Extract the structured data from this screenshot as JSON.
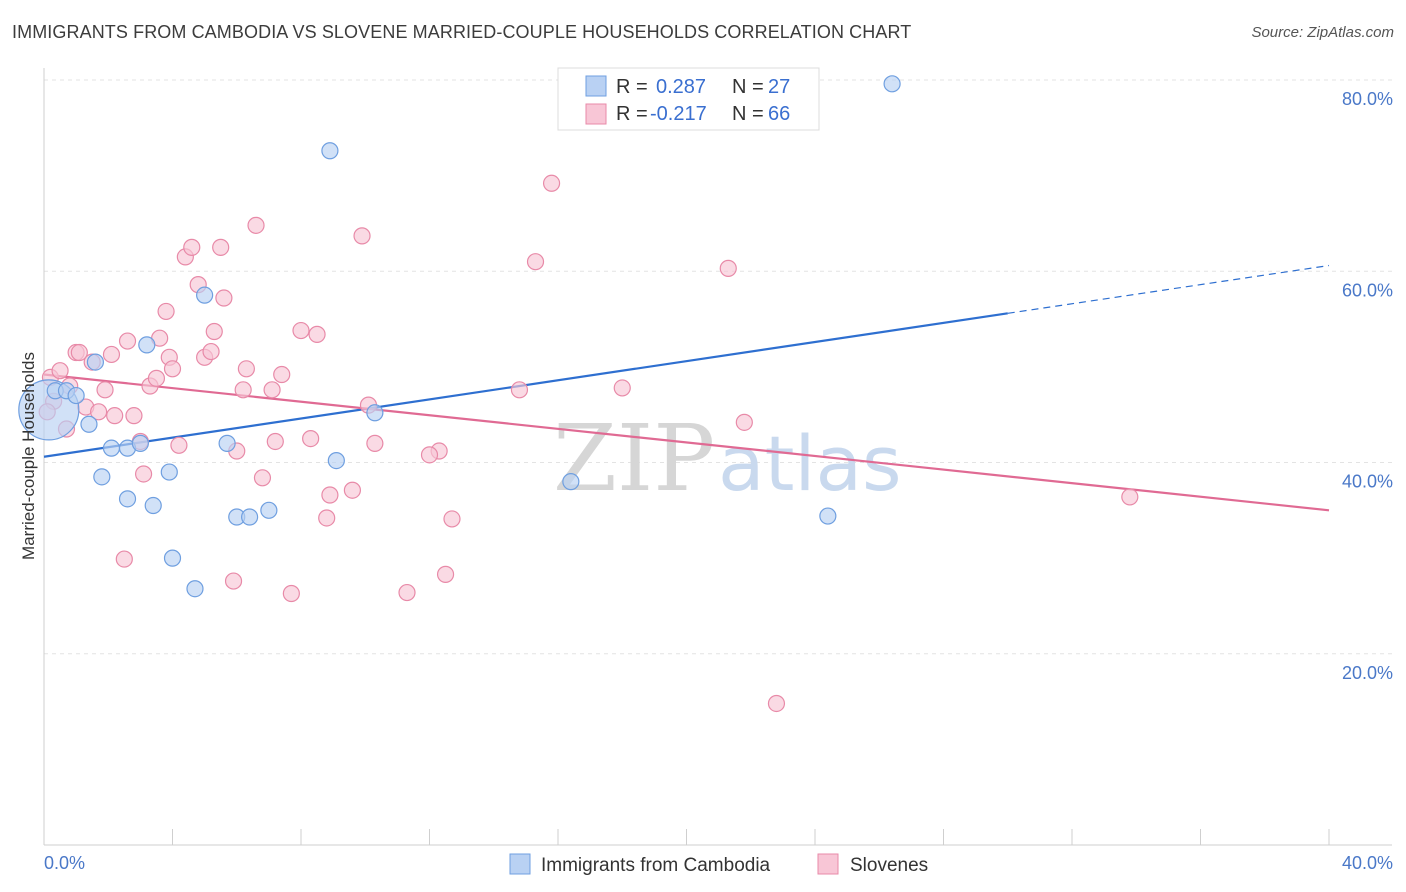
{
  "title": "IMMIGRANTS FROM CAMBODIA VS SLOVENE MARRIED-COUPLE HOUSEHOLDS CORRELATION CHART",
  "source": "Source: ZipAtlas.com",
  "watermark": {
    "zip": "ZIP",
    "atlas": "atlas"
  },
  "chart_data": {
    "type": "scatter",
    "title": "IMMIGRANTS FROM CAMBODIA VS SLOVENE MARRIED-COUPLE HOUSEHOLDS CORRELATION CHART",
    "xlabel": "",
    "ylabel": "Married-couple Households",
    "xlim": [
      0,
      40
    ],
    "ylim": [
      0,
      80
    ],
    "x_tick_labels": [
      "0.0%",
      "40.0%"
    ],
    "y_ticks": [
      20,
      40,
      60,
      80
    ],
    "y_tick_labels": [
      "20.0%",
      "40.0%",
      "60.0%",
      "80.0%"
    ],
    "legend_items": [
      "Immigrants from Cambodia",
      "Slovenes"
    ],
    "stats": [
      {
        "r_label": "R =",
        "r_value": "0.287",
        "n_label": "N =",
        "n_value": "27"
      },
      {
        "r_label": "R =",
        "r_value": "-0.217",
        "n_label": "N =",
        "n_value": "66"
      }
    ],
    "series": [
      {
        "name": "Immigrants from Cambodia",
        "color": "#6f9fe0",
        "fill": "#b9d1f3",
        "trend": {
          "x0": 0,
          "y0": 40.6,
          "x1": 30,
          "y1": 55.6,
          "dash_to_x": 40,
          "dash_to_y": 60.6,
          "color": "#2e6fd0"
        },
        "points": [
          [
            0.15,
            45.5,
            30
          ],
          [
            0.35,
            47.5,
            8
          ],
          [
            0.7,
            47.5,
            8
          ],
          [
            1.0,
            47.0,
            8
          ],
          [
            1.4,
            44.0,
            8
          ],
          [
            1.6,
            50.5,
            8
          ],
          [
            1.8,
            38.5,
            8
          ],
          [
            2.1,
            41.5,
            8
          ],
          [
            2.6,
            41.5,
            8
          ],
          [
            2.6,
            36.2,
            8
          ],
          [
            3.0,
            42.0,
            8
          ],
          [
            3.2,
            52.3,
            8
          ],
          [
            3.4,
            35.5,
            8
          ],
          [
            3.9,
            39.0,
            8
          ],
          [
            4.0,
            30.0,
            8
          ],
          [
            4.7,
            26.8,
            8
          ],
          [
            5.0,
            57.5,
            8
          ],
          [
            5.7,
            42.0,
            8
          ],
          [
            6.0,
            34.3,
            8
          ],
          [
            6.4,
            34.3,
            8
          ],
          [
            7.0,
            35.0,
            8
          ],
          [
            8.9,
            72.6,
            8
          ],
          [
            9.1,
            40.2,
            8
          ],
          [
            10.3,
            45.2,
            8
          ],
          [
            16.4,
            38.0,
            8
          ],
          [
            24.4,
            34.4,
            8
          ],
          [
            26.4,
            79.6,
            8
          ]
        ]
      },
      {
        "name": "Slovenes",
        "color": "#e88aa8",
        "fill": "#f8c6d6",
        "trend": {
          "x0": 0,
          "y0": 49.2,
          "x1": 40,
          "y1": 35.0,
          "color": "#e06a93"
        },
        "points": [
          [
            0.2,
            48.9,
            8
          ],
          [
            0.3,
            46.4,
            8
          ],
          [
            0.5,
            49.6,
            8
          ],
          [
            0.7,
            43.5,
            8
          ],
          [
            0.8,
            48.0,
            8
          ],
          [
            1.0,
            51.5,
            8
          ],
          [
            1.1,
            51.5,
            8
          ],
          [
            1.3,
            45.8,
            8
          ],
          [
            1.5,
            50.5,
            8
          ],
          [
            1.7,
            45.3,
            8
          ],
          [
            1.9,
            47.6,
            8
          ],
          [
            2.1,
            51.3,
            8
          ],
          [
            2.2,
            44.9,
            8
          ],
          [
            2.5,
            29.9,
            8
          ],
          [
            2.6,
            52.7,
            8
          ],
          [
            2.8,
            44.9,
            8
          ],
          [
            3.0,
            42.2,
            8
          ],
          [
            3.1,
            38.8,
            8
          ],
          [
            3.3,
            48.0,
            8
          ],
          [
            3.5,
            48.8,
            8
          ],
          [
            3.6,
            53.0,
            8
          ],
          [
            3.8,
            55.8,
            8
          ],
          [
            3.9,
            51.0,
            8
          ],
          [
            4.0,
            49.8,
            8
          ],
          [
            4.2,
            41.8,
            8
          ],
          [
            4.4,
            61.5,
            8
          ],
          [
            4.6,
            62.5,
            8
          ],
          [
            4.8,
            58.6,
            8
          ],
          [
            5.0,
            51.0,
            8
          ],
          [
            5.2,
            51.6,
            8
          ],
          [
            5.3,
            53.7,
            8
          ],
          [
            5.5,
            62.5,
            8
          ],
          [
            5.6,
            57.2,
            8
          ],
          [
            5.9,
            27.6,
            8
          ],
          [
            6.0,
            41.2,
            8
          ],
          [
            6.2,
            47.6,
            8
          ],
          [
            6.3,
            49.8,
            8
          ],
          [
            6.6,
            64.8,
            8
          ],
          [
            6.8,
            38.4,
            8
          ],
          [
            7.1,
            47.6,
            8
          ],
          [
            7.2,
            42.2,
            8
          ],
          [
            7.4,
            49.2,
            8
          ],
          [
            7.7,
            26.3,
            8
          ],
          [
            8.0,
            53.8,
            8
          ],
          [
            8.3,
            42.5,
            8
          ],
          [
            8.5,
            53.4,
            8
          ],
          [
            8.8,
            34.2,
            8
          ],
          [
            8.9,
            36.6,
            8
          ],
          [
            9.6,
            37.1,
            8
          ],
          [
            9.9,
            63.7,
            8
          ],
          [
            10.1,
            46.0,
            8
          ],
          [
            10.3,
            42.0,
            8
          ],
          [
            11.3,
            26.4,
            8
          ],
          [
            12.3,
            41.2,
            8
          ],
          [
            12.0,
            40.8,
            8
          ],
          [
            12.5,
            28.3,
            8
          ],
          [
            12.7,
            34.1,
            8
          ],
          [
            14.8,
            47.6,
            8
          ],
          [
            15.3,
            61.0,
            8
          ],
          [
            15.8,
            69.2,
            8
          ],
          [
            18.0,
            47.8,
            8
          ],
          [
            21.3,
            60.3,
            8
          ],
          [
            21.8,
            44.2,
            8
          ],
          [
            22.8,
            14.8,
            8
          ],
          [
            33.8,
            36.4,
            8
          ],
          [
            0.1,
            45.3,
            8
          ]
        ]
      }
    ]
  }
}
